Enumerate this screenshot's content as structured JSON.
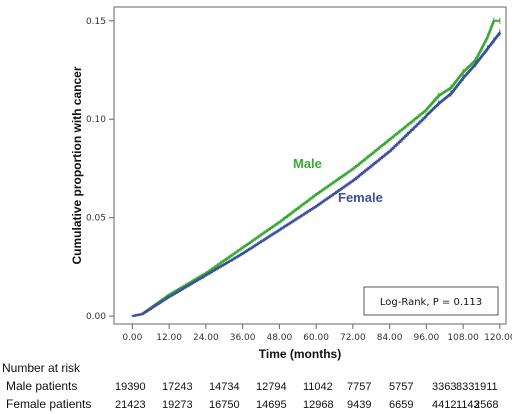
{
  "chart_data": {
    "type": "line",
    "title": "",
    "xlabel": "Time (months)",
    "ylabel": "Cumulative proportion with cancer",
    "xlim": [
      -6,
      122
    ],
    "ylim": [
      -0.004,
      0.157
    ],
    "xticks": [
      "0.00",
      "12.00",
      "24.00",
      "36.00",
      "48.00",
      "60.00",
      "72.00",
      "84.00",
      "96.00",
      "108.00",
      "120.00"
    ],
    "yticks": [
      "0.00",
      "0.05",
      "0.10",
      "0.15"
    ],
    "grid": false,
    "series": [
      {
        "name": "Male",
        "color": "#3aaa35",
        "x": [
          0,
          3,
          12,
          24,
          36,
          48,
          60,
          72,
          84,
          96,
          100,
          104,
          108,
          112,
          116,
          118,
          120
        ],
        "y": [
          0,
          0.001,
          0.011,
          0.022,
          0.035,
          0.048,
          0.062,
          0.075,
          0.09,
          0.105,
          0.112,
          0.116,
          0.124,
          0.13,
          0.142,
          0.15,
          0.15
        ]
      },
      {
        "name": "Female",
        "color": "#3b4fa0",
        "x": [
          0,
          3,
          12,
          24,
          36,
          48,
          60,
          72,
          84,
          96,
          100,
          104,
          108,
          112,
          116,
          118,
          120
        ],
        "y": [
          0,
          0.001,
          0.01,
          0.021,
          0.032,
          0.044,
          0.056,
          0.069,
          0.084,
          0.102,
          0.108,
          0.113,
          0.121,
          0.128,
          0.136,
          0.14,
          0.144
        ]
      }
    ],
    "annotation": "Log-Rank,  P = 0.113",
    "risk_table": {
      "heading": "Number at risk",
      "rows": [
        {
          "label": "Male patients",
          "values": [
            "19390",
            "17243",
            "14734",
            "12794",
            "11042",
            "7757",
            "5757",
            "3363",
            "1911",
            "833"
          ]
        },
        {
          "label": "Female patients",
          "values": [
            "21423",
            "19273",
            "16750",
            "14695",
            "12968",
            "9439",
            "6659",
            "4412",
            "2568",
            "1143"
          ]
        }
      ]
    }
  }
}
